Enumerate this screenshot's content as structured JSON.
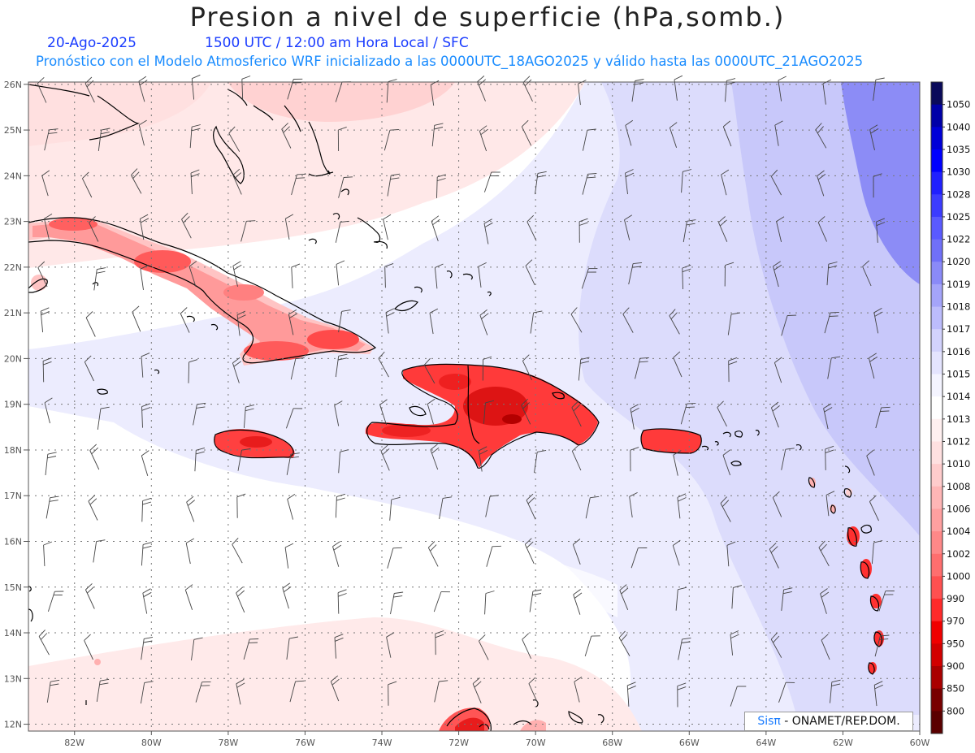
{
  "title": "Presion a nivel de superficie (hPa,somb.)",
  "date": "20-Ago-2025",
  "time_info": "1500 UTC / 12:00 am Hora Local / SFC",
  "description": "Pronóstico con el Modelo Atmosferico WRF inicializado a las 0000UTC_18AGO2025 y válido hasta las  0000UTC_21AGO2025",
  "credit": {
    "brand": "Sisπ",
    "rest": " - ONAMET/REP.DOM."
  },
  "lat_labels": [
    "26N",
    "25N",
    "24N",
    "23N",
    "22N",
    "21N",
    "20N",
    "19N",
    "18N",
    "17N",
    "16N",
    "15N",
    "14N",
    "13N",
    "12N"
  ],
  "lon_labels": [
    "82W",
    "80W",
    "78W",
    "76W",
    "74W",
    "72W",
    "70W",
    "68W",
    "66W",
    "64W",
    "62W",
    "60W"
  ],
  "colorbar": {
    "labels": [
      "1050",
      "1040",
      "1035",
      "1030",
      "1028",
      "1025",
      "1022",
      "1020",
      "1019",
      "1018",
      "1017",
      "1016",
      "1015",
      "1014",
      "1013",
      "1012",
      "1010",
      "1008",
      "1006",
      "1004",
      "1002",
      "1000",
      "990",
      "970",
      "950",
      "900",
      "850",
      "800"
    ],
    "colors": [
      "#0a0a5a",
      "#0000a8",
      "#0000d8",
      "#0000ff",
      "#2020ff",
      "#3c3cff",
      "#5a5aff",
      "#7070f8",
      "#8a8af8",
      "#a4a4fa",
      "#bcbcfc",
      "#d2d2fc",
      "#e4e4fe",
      "#f4f4ff",
      "#ffffff",
      "#fff0f0",
      "#ffe0e0",
      "#ffcccc",
      "#ffb6b6",
      "#ffa0a0",
      "#ff8888",
      "#ff6e6e",
      "#ff5050",
      "#ff2a2a",
      "#f00000",
      "#d20000",
      "#aa0000",
      "#780000"
    ]
  }
}
